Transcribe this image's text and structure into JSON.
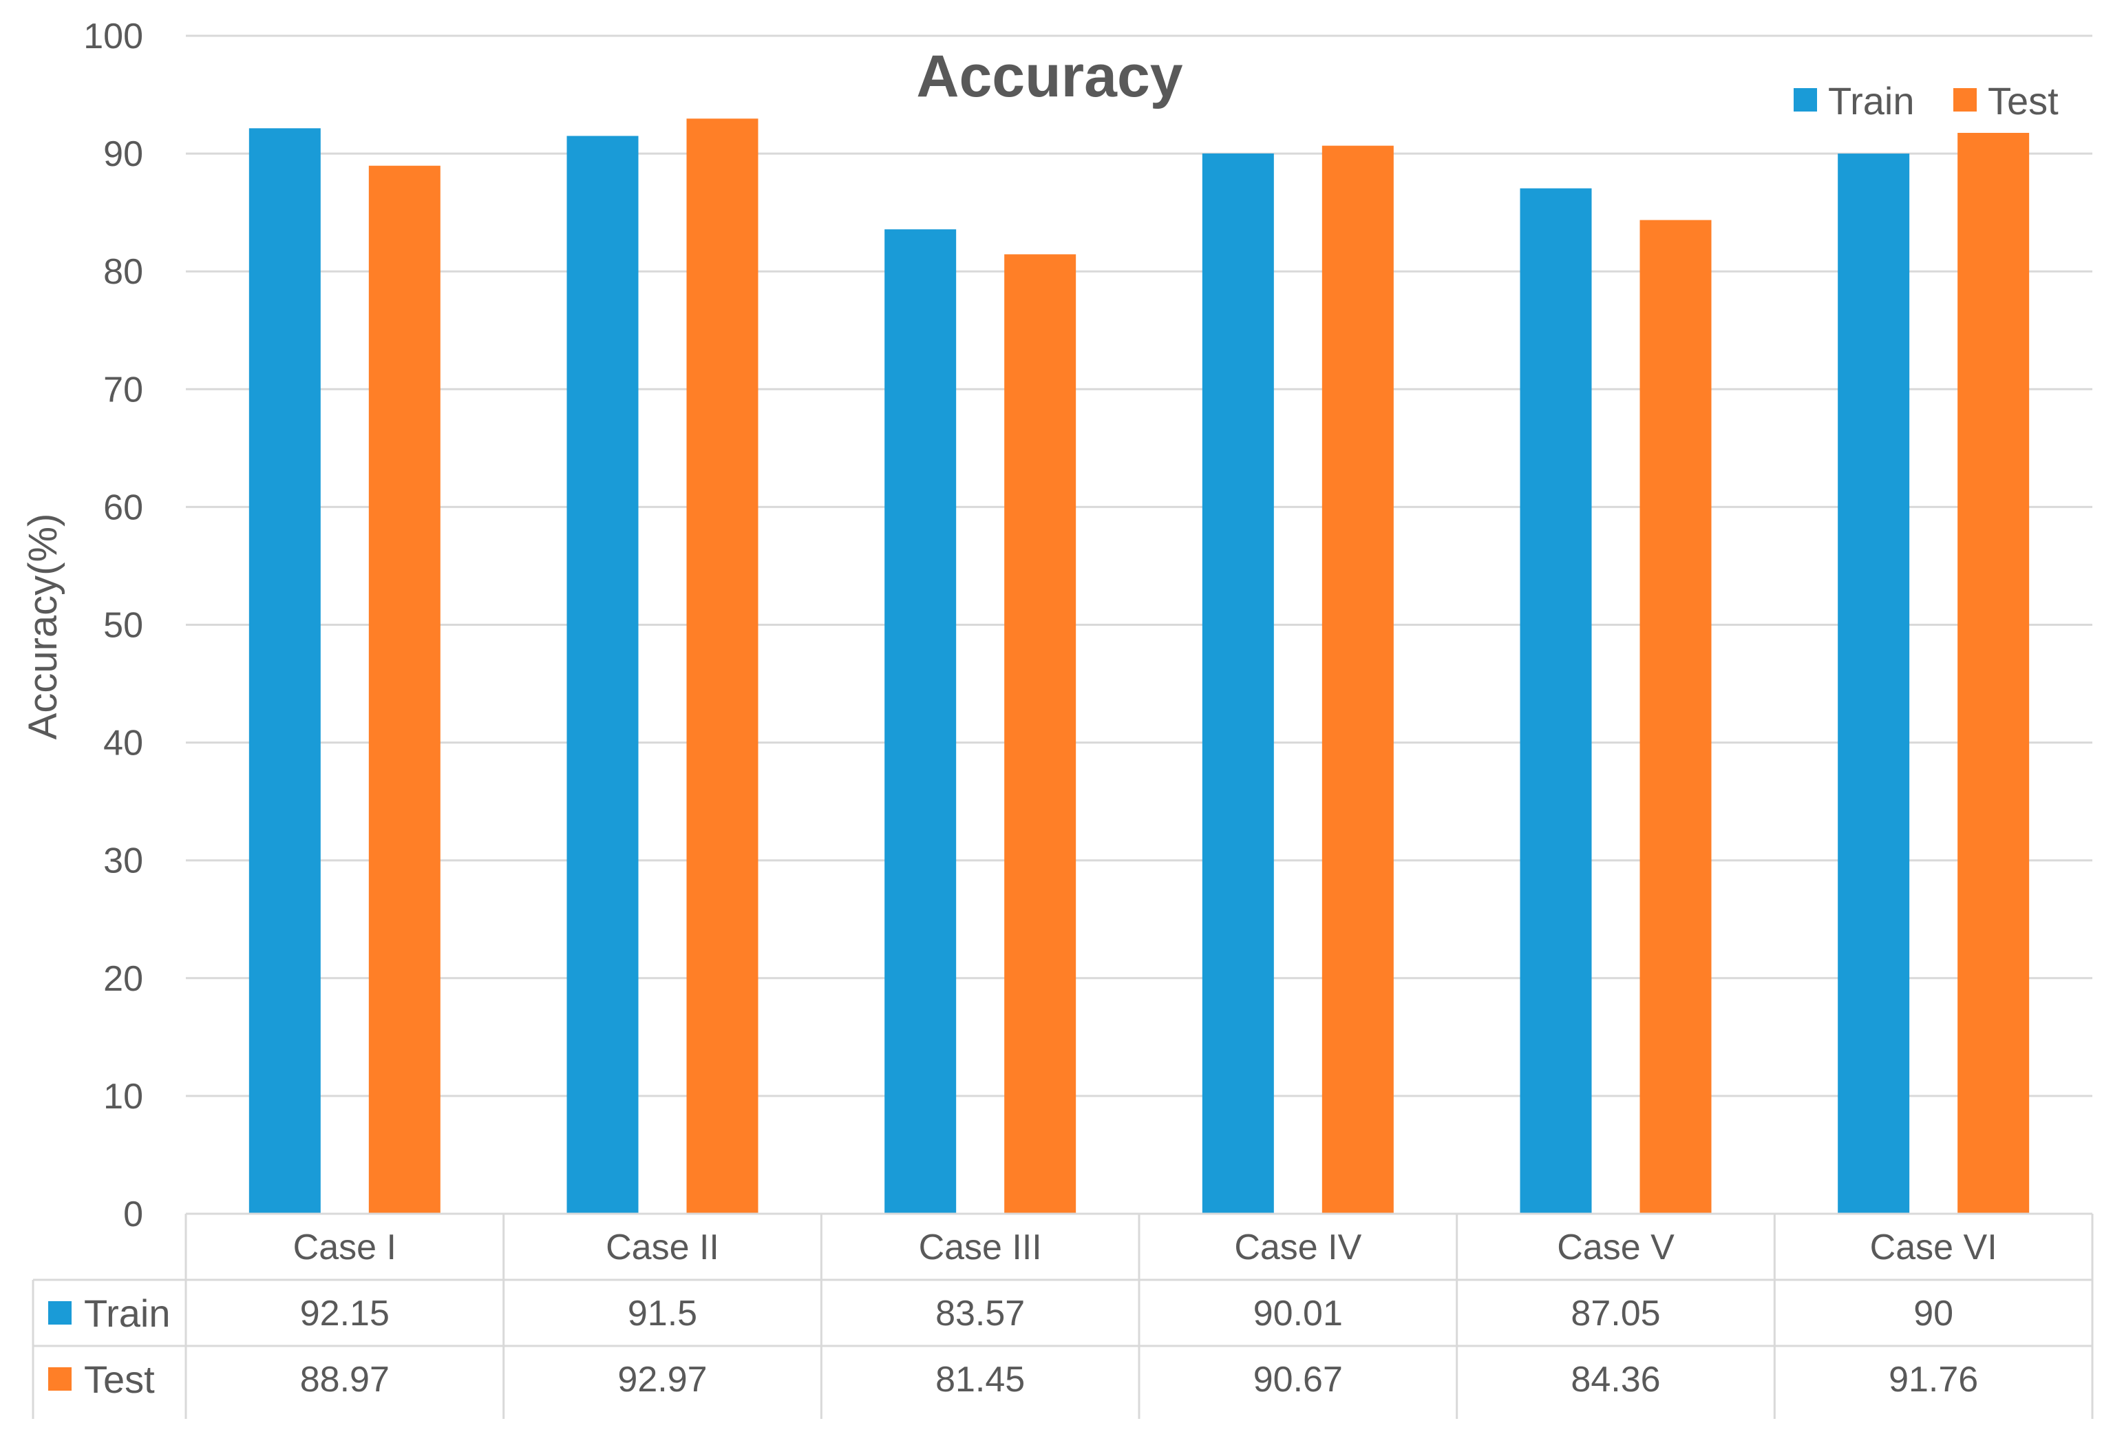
{
  "chart_data": {
    "type": "bar",
    "title": "Accuracy",
    "xlabel": "",
    "ylabel": "Accuracy(%)",
    "ylim": [
      0,
      100
    ],
    "yticks": [
      0,
      10,
      20,
      30,
      40,
      50,
      60,
      70,
      80,
      90,
      100
    ],
    "grid": true,
    "legend_position": "top-right",
    "categories": [
      "Case I",
      "Case II",
      "Case III",
      "Case IV",
      "Case V",
      "Case VI"
    ],
    "series": [
      {
        "name": "Train",
        "color": "#1a9bd7",
        "values": [
          92.15,
          91.5,
          83.57,
          90.01,
          87.05,
          90
        ],
        "labels": [
          "92.15",
          "91.5",
          "83.57",
          "90.01",
          "87.05",
          "90"
        ]
      },
      {
        "name": "Test",
        "color": "#ff7f27",
        "values": [
          88.97,
          92.97,
          81.45,
          90.67,
          84.36,
          91.76
        ],
        "labels": [
          "88.97",
          "92.97",
          "81.45",
          "90.67",
          "84.36",
          "91.76"
        ]
      }
    ],
    "data_table": true
  }
}
